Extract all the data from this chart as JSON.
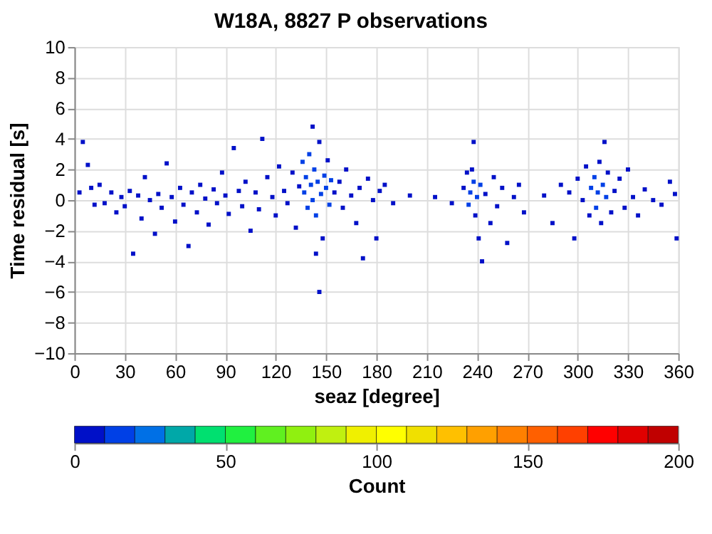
{
  "chart_data": {
    "type": "scatter",
    "title": "W18A, 8827 P observations",
    "xlabel": "seaz [degree]",
    "ylabel": "Time residual [s]",
    "clabel": "Count",
    "xlim": [
      0,
      360
    ],
    "xticks": [
      0,
      30,
      60,
      90,
      120,
      150,
      180,
      210,
      240,
      270,
      300,
      330,
      360
    ],
    "ylim": [
      -10,
      10
    ],
    "yticks": [
      -10,
      -8,
      -6,
      -4,
      -2,
      0,
      2,
      4,
      6,
      8,
      10
    ],
    "clim": [
      0,
      200
    ],
    "cticks": [
      0,
      50,
      100,
      150,
      200
    ],
    "grid": true,
    "marker": "square",
    "x": [
      3,
      5,
      8,
      10,
      12,
      15,
      18,
      22,
      25,
      28,
      30,
      33,
      35,
      38,
      40,
      42,
      45,
      48,
      50,
      52,
      55,
      58,
      60,
      63,
      65,
      68,
      70,
      73,
      75,
      78,
      80,
      83,
      85,
      88,
      90,
      92,
      95,
      98,
      100,
      102,
      105,
      108,
      110,
      112,
      115,
      118,
      120,
      122,
      125,
      127,
      130,
      132,
      134,
      136,
      137,
      138,
      139,
      140,
      141,
      142,
      143,
      144,
      145,
      146,
      147,
      148,
      149,
      150,
      151,
      152,
      153,
      144,
      146,
      142,
      155,
      158,
      160,
      162,
      165,
      168,
      170,
      172,
      175,
      178,
      180,
      182,
      185,
      190,
      200,
      215,
      225,
      232,
      234,
      235,
      236,
      237,
      238,
      239,
      240,
      241,
      242,
      238,
      243,
      245,
      248,
      250,
      252,
      255,
      258,
      262,
      265,
      268,
      280,
      285,
      290,
      295,
      298,
      300,
      303,
      305,
      307,
      308,
      310,
      311,
      312,
      313,
      314,
      315,
      316,
      317,
      318,
      320,
      322,
      325,
      328,
      330,
      333,
      336,
      340,
      345,
      350,
      355,
      358,
      359
    ],
    "values": [
      0.5,
      3.8,
      2.3,
      0.8,
      -0.3,
      1.0,
      -0.2,
      0.5,
      -0.8,
      0.2,
      -0.4,
      0.6,
      -3.5,
      0.3,
      -1.2,
      1.5,
      0.0,
      -2.2,
      0.4,
      -0.5,
      2.4,
      0.2,
      -1.4,
      0.8,
      -0.3,
      -3.0,
      0.5,
      -0.8,
      1.0,
      0.1,
      -1.6,
      0.7,
      -0.2,
      1.8,
      0.3,
      -0.9,
      3.4,
      0.6,
      -0.4,
      1.2,
      -2.0,
      0.5,
      -0.6,
      4.0,
      1.5,
      0.2,
      -1.0,
      2.2,
      0.6,
      -0.2,
      1.8,
      -1.8,
      0.9,
      2.5,
      0.5,
      1.5,
      -0.5,
      3.0,
      1.0,
      0.0,
      2.0,
      -1.0,
      1.2,
      3.8,
      0.4,
      -2.5,
      1.6,
      0.8,
      2.6,
      -0.3,
      1.3,
      -3.5,
      -6.0,
      4.8,
      0.5,
      1.2,
      -0.5,
      2.0,
      0.3,
      -1.5,
      0.8,
      -3.8,
      1.4,
      0.0,
      -2.5,
      0.6,
      1.0,
      -0.2,
      0.3,
      0.2,
      -0.2,
      0.8,
      1.8,
      -0.3,
      0.5,
      2.0,
      1.2,
      -1.0,
      0.2,
      -2.5,
      1.0,
      3.8,
      -4.0,
      0.4,
      -1.5,
      1.5,
      -0.4,
      0.8,
      -2.8,
      0.2,
      1.0,
      -0.8,
      0.3,
      -1.5,
      1.0,
      0.5,
      -2.5,
      1.4,
      0.0,
      2.2,
      -1.0,
      0.8,
      1.5,
      -0.5,
      0.5,
      2.5,
      -1.5,
      1.0,
      3.8,
      0.2,
      1.8,
      -0.8,
      0.6,
      1.4,
      -0.5,
      2.0,
      0.2,
      -1.0,
      0.7,
      0.0,
      -0.3,
      1.2,
      0.4,
      -2.5
    ],
    "cvalues": [
      5,
      5,
      5,
      5,
      5,
      5,
      5,
      5,
      5,
      5,
      5,
      5,
      5,
      5,
      5,
      5,
      5,
      5,
      5,
      5,
      5,
      5,
      5,
      5,
      5,
      5,
      5,
      5,
      5,
      5,
      5,
      5,
      5,
      5,
      5,
      5,
      5,
      5,
      5,
      5,
      5,
      5,
      5,
      5,
      5,
      5,
      5,
      5,
      5,
      5,
      5,
      5,
      5,
      15,
      15,
      15,
      15,
      15,
      15,
      15,
      15,
      15,
      15,
      5,
      15,
      5,
      15,
      15,
      5,
      15,
      15,
      5,
      5,
      5,
      5,
      5,
      5,
      5,
      5,
      5,
      5,
      5,
      5,
      5,
      5,
      5,
      5,
      5,
      5,
      5,
      5,
      5,
      5,
      15,
      15,
      5,
      15,
      5,
      15,
      5,
      15,
      5,
      5,
      5,
      5,
      5,
      5,
      5,
      5,
      5,
      5,
      5,
      5,
      5,
      5,
      5,
      5,
      5,
      5,
      5,
      5,
      15,
      15,
      15,
      15,
      5,
      5,
      15,
      5,
      15,
      5,
      5,
      5,
      5,
      5,
      5,
      5,
      5,
      5,
      5,
      5,
      5,
      5,
      5
    ]
  }
}
